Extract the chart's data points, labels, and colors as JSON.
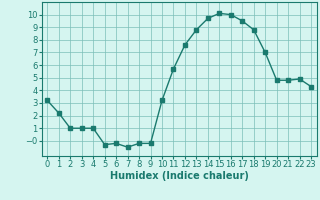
{
  "x": [
    0,
    1,
    2,
    3,
    4,
    5,
    6,
    7,
    8,
    9,
    10,
    11,
    12,
    13,
    14,
    15,
    16,
    17,
    18,
    19,
    20,
    21,
    22,
    23
  ],
  "y": [
    3.2,
    2.2,
    1.0,
    1.0,
    1.0,
    -0.3,
    -0.2,
    -0.5,
    -0.2,
    -0.2,
    3.2,
    5.7,
    7.6,
    8.8,
    9.7,
    10.1,
    10.0,
    9.5,
    8.8,
    7.0,
    4.8,
    4.8,
    4.9,
    4.3
  ],
  "line_color": "#1a7a6e",
  "marker": "s",
  "markersize": 2.5,
  "linewidth": 1.0,
  "bg_color": "#d5f5f0",
  "grid_color": "#7bbfb8",
  "xlabel": "Humidex (Indice chaleur)",
  "xlabel_fontsize": 7,
  "tick_fontsize": 6,
  "xlim": [
    -0.5,
    23.5
  ],
  "ylim": [
    -1.2,
    11.0
  ],
  "yticks": [
    0,
    1,
    2,
    3,
    4,
    5,
    6,
    7,
    8,
    9,
    10
  ],
  "ytick_labels": [
    "−0",
    "1",
    "2",
    "3",
    "4",
    "5",
    "6",
    "7",
    "8",
    "9",
    "10"
  ],
  "xticks": [
    0,
    1,
    2,
    3,
    4,
    5,
    6,
    7,
    8,
    9,
    10,
    11,
    12,
    13,
    14,
    15,
    16,
    17,
    18,
    19,
    20,
    21,
    22,
    23
  ]
}
